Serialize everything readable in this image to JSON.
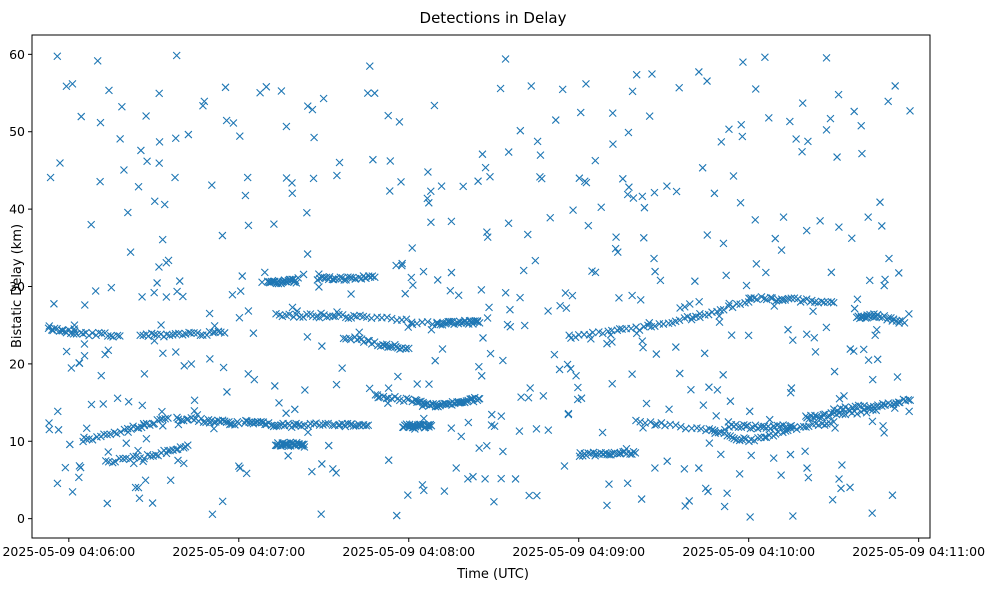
{
  "chart_data": {
    "type": "scatter",
    "title": "Detections in Delay",
    "xlabel": "Time (UTC)",
    "ylabel": "Bistatic Delay (km)",
    "marker": "x",
    "color": "#1f77b4",
    "grid": false,
    "legend": "none",
    "x_axis": {
      "type": "time",
      "range": [
        "2025-05-09 04:05:47",
        "2025-05-09 04:11:04"
      ],
      "ticks": [
        "2025-05-09 04:06:00",
        "2025-05-09 04:07:00",
        "2025-05-09 04:08:00",
        "2025-05-09 04:09:00",
        "2025-05-09 04:10:00",
        "2025-05-09 04:11:00"
      ]
    },
    "y_axis": {
      "range": [
        -2.5,
        62.5
      ],
      "ticks": [
        "0",
        "10",
        "20",
        "30",
        "40",
        "50",
        "60"
      ]
    },
    "tracks": [
      {
        "x": [
          "2025-05-09 04:05:53",
          "2025-05-09 04:06:03",
          "2025-05-09 04:06:18"
        ],
        "y": [
          24.6,
          24.0,
          23.6
        ]
      },
      {
        "x": [
          "2025-05-09 04:06:05",
          "2025-05-09 04:06:22",
          "2025-05-09 04:06:35"
        ],
        "y": [
          10.0,
          11.6,
          13.0
        ]
      },
      {
        "x": [
          "2025-05-09 04:06:13",
          "2025-05-09 04:06:30",
          "2025-05-09 04:06:42"
        ],
        "y": [
          7.3,
          8.2,
          9.5
        ]
      },
      {
        "x": [
          "2025-05-09 04:06:25",
          "2025-05-09 04:06:40",
          "2025-05-09 04:06:55"
        ],
        "y": [
          23.7,
          23.8,
          24.0
        ]
      },
      {
        "x": [
          "2025-05-09 04:06:38",
          "2025-05-09 04:06:50",
          "2025-05-09 04:07:00"
        ],
        "y": [
          13.0,
          12.6,
          12.3
        ]
      },
      {
        "x": [
          "2025-05-09 04:07:02",
          "2025-05-09 04:07:10",
          "2025-05-09 04:07:20"
        ],
        "y": [
          12.5,
          12.2,
          12.0
        ]
      },
      {
        "x": [
          "2025-05-09 04:07:10",
          "2025-05-09 04:07:15",
          "2025-05-09 04:07:20"
        ],
        "y": [
          30.5,
          30.6,
          30.8
        ]
      },
      {
        "x": [
          "2025-05-09 04:07:13",
          "2025-05-09 04:07:18",
          "2025-05-09 04:07:23"
        ],
        "y": [
          9.6,
          9.6,
          9.6
        ]
      },
      {
        "x": [
          "2025-05-09 04:07:13",
          "2025-05-09 04:07:30",
          "2025-05-09 04:07:45",
          "2025-05-09 04:08:10"
        ],
        "y": [
          26.3,
          26.3,
          26.0,
          25.2
        ]
      },
      {
        "x": [
          "2025-05-09 04:07:20",
          "2025-05-09 04:07:35",
          "2025-05-09 04:07:45"
        ],
        "y": [
          12.2,
          12.2,
          12.0
        ]
      },
      {
        "x": [
          "2025-05-09 04:07:28",
          "2025-05-09 04:07:38",
          "2025-05-09 04:07:48"
        ],
        "y": [
          31.0,
          31.0,
          31.2
        ]
      },
      {
        "x": [
          "2025-05-09 04:07:37",
          "2025-05-09 04:07:50",
          "2025-05-09 04:08:00"
        ],
        "y": [
          23.5,
          22.5,
          22.0
        ]
      },
      {
        "x": [
          "2025-05-09 04:07:48",
          "2025-05-09 04:08:02",
          "2025-05-09 04:08:10"
        ],
        "y": [
          16.0,
          15.2,
          14.6
        ]
      },
      {
        "x": [
          "2025-05-09 04:07:58",
          "2025-05-09 04:08:03",
          "2025-05-09 04:08:08"
        ],
        "y": [
          12.0,
          12.0,
          12.0
        ]
      },
      {
        "x": [
          "2025-05-09 04:08:10",
          "2025-05-09 04:08:18",
          "2025-05-09 04:08:25"
        ],
        "y": [
          14.6,
          15.0,
          15.5
        ]
      },
      {
        "x": [
          "2025-05-09 04:08:10",
          "2025-05-09 04:08:18",
          "2025-05-09 04:08:25"
        ],
        "y": [
          25.2,
          25.4,
          25.3
        ]
      },
      {
        "x": [
          "2025-05-09 04:09:00",
          "2025-05-09 04:09:10",
          "2025-05-09 04:09:20"
        ],
        "y": [
          8.3,
          8.4,
          8.5
        ]
      },
      {
        "x": [
          "2025-05-09 04:08:57",
          "2025-05-09 04:09:20",
          "2025-05-09 04:09:40",
          "2025-05-09 04:10:00"
        ],
        "y": [
          23.5,
          24.5,
          26.0,
          28.0
        ]
      },
      {
        "x": [
          "2025-05-09 04:09:20",
          "2025-05-09 04:09:45",
          "2025-05-09 04:10:00",
          "2025-05-09 04:10:15",
          "2025-05-09 04:10:30"
        ],
        "y": [
          12.5,
          11.5,
          10.0,
          11.5,
          12.5
        ]
      },
      {
        "x": [
          "2025-05-09 04:09:53",
          "2025-05-09 04:10:05",
          "2025-05-09 04:10:15"
        ],
        "y": [
          12.0,
          11.8,
          12.0
        ]
      },
      {
        "x": [
          "2025-05-09 04:10:00",
          "2025-05-09 04:10:15",
          "2025-05-09 04:10:30"
        ],
        "y": [
          28.6,
          28.3,
          27.9
        ]
      },
      {
        "x": [
          "2025-05-09 04:10:20",
          "2025-05-09 04:10:30",
          "2025-05-09 04:10:45"
        ],
        "y": [
          13.0,
          13.5,
          14.0
        ]
      },
      {
        "x": [
          "2025-05-09 04:10:30",
          "2025-05-09 04:10:45",
          "2025-05-09 04:10:57"
        ],
        "y": [
          14.0,
          14.7,
          15.3
        ]
      },
      {
        "x": [
          "2025-05-09 04:10:38",
          "2025-05-09 04:10:45",
          "2025-05-09 04:10:55"
        ],
        "y": [
          26.0,
          26.3,
          25.3
        ]
      }
    ],
    "samples_per_track": 14,
    "clutter_points": 520
  }
}
